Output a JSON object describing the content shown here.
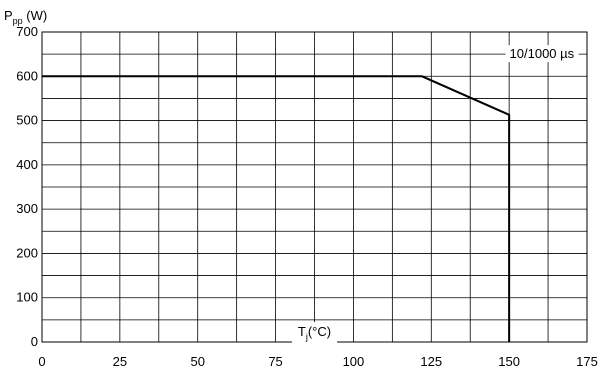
{
  "chart_data": {
    "type": "line",
    "title": "",
    "ylabel_main": "P",
    "ylabel_sub": "pp",
    "ylabel_unit": " (W)",
    "xlabel_main": "T",
    "xlabel_sub": "j",
    "xlabel_unit": "(°C)",
    "annotation": "10/1000 µs",
    "xlim": [
      0,
      175
    ],
    "ylim": [
      0,
      700
    ],
    "x_ticks": [
      0,
      25,
      50,
      75,
      100,
      125,
      150,
      175
    ],
    "y_ticks": [
      0,
      100,
      200,
      300,
      400,
      500,
      600,
      700
    ],
    "x_minor_step": 12.5,
    "y_minor_step": 50,
    "grid": true,
    "series": [
      {
        "x": [
          0,
          122,
          150,
          150
        ],
        "y": [
          600,
          600,
          513,
          0
        ]
      }
    ]
  }
}
